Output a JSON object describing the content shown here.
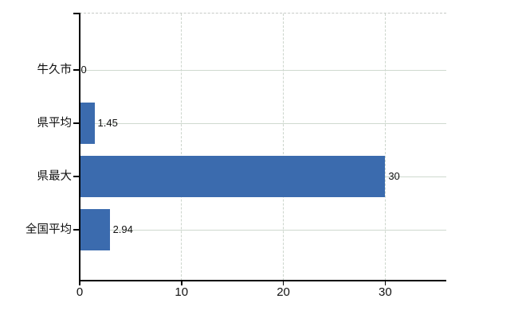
{
  "chart_data": {
    "type": "bar",
    "orientation": "horizontal",
    "title": "",
    "xlabel": "",
    "ylabel": "",
    "categories": [
      "牛久市",
      "県平均",
      "県最大",
      "全国平均"
    ],
    "values": [
      0,
      1.45,
      30,
      2.94
    ],
    "value_labels": [
      "0",
      "1.45",
      "30",
      "2.94"
    ],
    "x_ticks": [
      0,
      10,
      20,
      30
    ],
    "x_tick_labels": [
      "0",
      "10",
      "20",
      "30"
    ],
    "xlim": [
      0,
      36
    ],
    "grid": true,
    "legend": "none",
    "colors": {
      "bar": "#3b6bae",
      "axis": "#000000",
      "gridline": "#ccd5cc",
      "row_line": "#cfd9cf",
      "frame_top": "#c6cac6",
      "text": "#111111",
      "background": "#ffffff"
    }
  }
}
